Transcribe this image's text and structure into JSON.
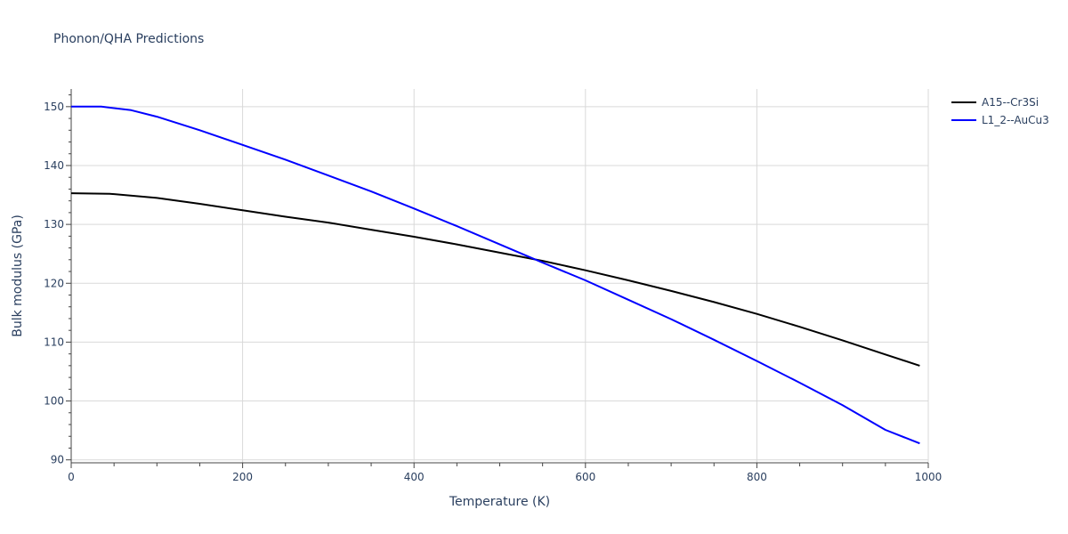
{
  "chart_data": {
    "type": "line",
    "title": "Phonon/QHA Predictions",
    "xlabel": "Temperature (K)",
    "ylabel": "Bulk modulus (GPa)",
    "xlim": [
      0,
      1000
    ],
    "ylim": [
      89.5,
      153
    ],
    "xticks": [
      0,
      200,
      400,
      600,
      800,
      1000
    ],
    "yticks": [
      90,
      100,
      110,
      120,
      130,
      140,
      150
    ],
    "grid": true,
    "legend_position": "top-right",
    "series": [
      {
        "name": "A15--Cr3Si",
        "color": "#000000",
        "x": [
          0,
          45,
          100,
          150,
          200,
          250,
          300,
          350,
          400,
          450,
          500,
          550,
          600,
          650,
          700,
          750,
          800,
          850,
          900,
          950,
          990
        ],
        "y": [
          135.3,
          135.2,
          134.5,
          133.5,
          132.4,
          131.3,
          130.3,
          129.1,
          127.9,
          126.6,
          125.2,
          123.8,
          122.2,
          120.5,
          118.7,
          116.8,
          114.8,
          112.6,
          110.3,
          107.9,
          106.0
        ]
      },
      {
        "name": "L1_2--AuCu3",
        "color": "#0000ff",
        "x": [
          0,
          35,
          70,
          100,
          150,
          200,
          250,
          300,
          350,
          400,
          450,
          500,
          550,
          600,
          650,
          700,
          750,
          800,
          850,
          900,
          950,
          990
        ],
        "y": [
          150.0,
          150.0,
          149.4,
          148.3,
          146.0,
          143.5,
          141.0,
          138.3,
          135.6,
          132.7,
          129.7,
          126.6,
          123.5,
          120.5,
          117.2,
          113.9,
          110.4,
          106.8,
          103.1,
          99.3,
          95.1,
          92.8
        ]
      }
    ]
  }
}
